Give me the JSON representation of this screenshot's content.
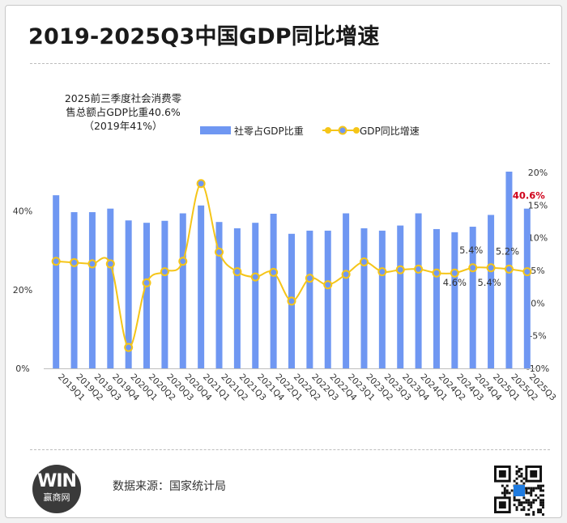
{
  "title": "2019-2025Q3中国GDP同比增速",
  "annotation": {
    "line1": "2025前三季度社会消费零",
    "line2": "售总额占GDP比重40.6%",
    "line3": "（2019年41%）"
  },
  "source": "数据来源：国家统计局",
  "logo": {
    "mark": "WIN",
    "text": "赢商网"
  },
  "colors": {
    "bar": "#6f97f2",
    "line": "#f5c518",
    "marker_fill": "#6f97f2",
    "highlight": "#d0021b",
    "grid": "#d9d9d9"
  },
  "chart_data": {
    "type": "bar",
    "categories": [
      "2019Q1",
      "2019Q2",
      "2019Q3",
      "2019Q4",
      "2020Q1",
      "2020Q2",
      "2020Q3",
      "2020Q4",
      "2021Q1",
      "2021Q2",
      "2021Q3",
      "2021Q4",
      "2022Q1",
      "2022Q2",
      "2022Q3",
      "2022Q4",
      "2023Q1",
      "2023Q2",
      "2023Q3",
      "2023Q4",
      "2024Q1",
      "2024Q2",
      "2024Q3",
      "2024Q4",
      "2025Q1",
      "2025Q2",
      "2025Q3"
    ],
    "legend": [
      "社零占GDP比重",
      "GDP同比增速"
    ],
    "legend_position": "top",
    "grid": false,
    "y_left": {
      "ticks": [
        "0%",
        "20%",
        "40%"
      ],
      "range": [
        0,
        50
      ]
    },
    "y_right": {
      "ticks": [
        "-10%",
        "-5%",
        "0%",
        "5%",
        "10%",
        "15%",
        "20%"
      ],
      "range": [
        -10,
        20
      ]
    },
    "series": [
      {
        "name": "社零占GDP比重",
        "type": "bar",
        "axis": "left",
        "values": [
          44.0,
          39.7,
          39.7,
          40.6,
          37.6,
          37.0,
          37.5,
          39.4,
          41.4,
          37.2,
          35.6,
          37.0,
          39.3,
          34.2,
          35.0,
          35.0,
          39.4,
          35.6,
          35.0,
          36.3,
          39.4,
          35.4,
          34.6,
          36.0,
          39.0,
          50.0,
          40.6
        ]
      },
      {
        "name": "GDP同比增速",
        "type": "line",
        "axis": "right",
        "smooth": true,
        "values": [
          6.4,
          6.2,
          6.0,
          6.0,
          -6.8,
          3.1,
          4.8,
          6.4,
          18.3,
          7.8,
          4.8,
          4.0,
          4.7,
          0.3,
          3.8,
          2.8,
          4.4,
          6.3,
          4.8,
          5.1,
          5.2,
          4.6,
          4.6,
          5.4,
          5.4,
          5.2,
          4.8
        ]
      }
    ],
    "data_labels": [
      {
        "series": "GDP同比增速",
        "category": "2024Q3",
        "text": "4.6%"
      },
      {
        "series": "GDP同比增速",
        "category": "2024Q4",
        "text": "5.4%"
      },
      {
        "series": "GDP同比增速",
        "category": "2025Q1",
        "text": "5.4%"
      },
      {
        "series": "GDP同比增速",
        "category": "2025Q2",
        "text": "5.2%"
      },
      {
        "series": "社零占GDP比重",
        "category": "2025Q3",
        "text": "40.6%",
        "highlight": true
      }
    ]
  }
}
